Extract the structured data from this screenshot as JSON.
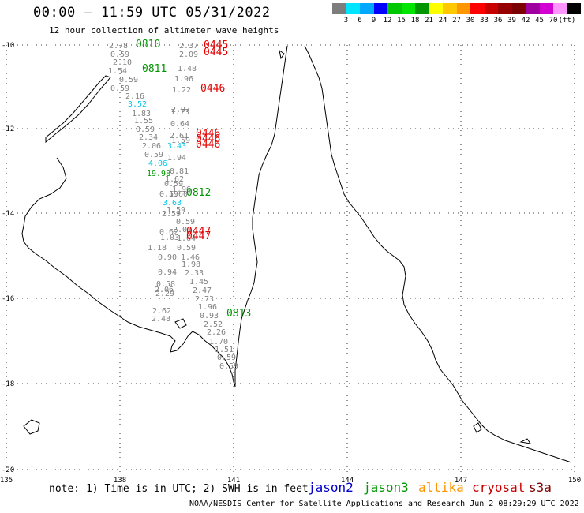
{
  "title": "00:00 – 11:59 UTC 05/31/2022",
  "subtitle": "12 hour collection of altimeter wave heights",
  "colorbar": {
    "colors": [
      "#7d7d7d",
      "#00e5ff",
      "#00a8ff",
      "#0000ff",
      "#00c800",
      "#00e600",
      "#009600",
      "#ffff00",
      "#ffc800",
      "#ff9600",
      "#ff0000",
      "#c80000",
      "#960000",
      "#7d0000",
      "#a000a0",
      "#d200d2",
      "#ff96ff",
      "#000000"
    ],
    "ticks": [
      "3",
      "6",
      "9",
      "12",
      "15",
      "18",
      "21",
      "24",
      "27",
      "30",
      "33",
      "36",
      "39",
      "42",
      "45",
      "70",
      "(ft)"
    ]
  },
  "axes": {
    "lat_labels": [
      "-10",
      "-12",
      "-14",
      "-16",
      "-18",
      "-20"
    ],
    "lon_labels": [
      "135",
      "138",
      "141",
      "144",
      "147",
      "150"
    ]
  },
  "swh_readings": [
    {
      "t": "2.78",
      "c": "#808080"
    },
    {
      "t": "2.37",
      "c": "#808080"
    },
    {
      "t": "0.59",
      "c": "#808080"
    },
    {
      "t": "2.09",
      "c": "#808080"
    },
    {
      "t": "2.10",
      "c": "#808080"
    },
    {
      "t": "1.54",
      "c": "#808080"
    },
    {
      "t": "1.48",
      "c": "#808080"
    },
    {
      "t": "0.59",
      "c": "#808080"
    },
    {
      "t": "1.96",
      "c": "#808080"
    },
    {
      "t": "0.59",
      "c": "#808080"
    },
    {
      "t": "1.22",
      "c": "#808080"
    },
    {
      "t": "2.16",
      "c": "#808080"
    },
    {
      "t": "3.52",
      "c": "#00c8e6"
    },
    {
      "t": "2.97",
      "c": "#808080"
    },
    {
      "t": "1.83",
      "c": "#808080"
    },
    {
      "t": "1.73",
      "c": "#808080"
    },
    {
      "t": "1.55",
      "c": "#808080"
    },
    {
      "t": "0.64",
      "c": "#808080"
    },
    {
      "t": "0.59",
      "c": "#808080"
    },
    {
      "t": "2.34",
      "c": "#808080"
    },
    {
      "t": "2.61",
      "c": "#808080"
    },
    {
      "t": "1.59",
      "c": "#808080"
    },
    {
      "t": "2.06",
      "c": "#808080"
    },
    {
      "t": "3.43",
      "c": "#00c8e6"
    },
    {
      "t": "0.59",
      "c": "#808080"
    },
    {
      "t": "1.94",
      "c": "#808080"
    },
    {
      "t": "4.06",
      "c": "#00c8e6"
    },
    {
      "t": "19.98",
      "c": "#009600"
    },
    {
      "t": "0.81",
      "c": "#808080"
    },
    {
      "t": "1.62",
      "c": "#808080"
    },
    {
      "t": "0.59",
      "c": "#808080"
    },
    {
      "t": "1.96",
      "c": "#808080"
    },
    {
      "t": "0.59",
      "c": "#808080"
    },
    {
      "t": "1.60",
      "c": "#808080"
    },
    {
      "t": "3.63",
      "c": "#00c8e6"
    },
    {
      "t": "1.59",
      "c": "#808080"
    },
    {
      "t": "2.59",
      "c": "#808080"
    },
    {
      "t": "0.59",
      "c": "#808080"
    },
    {
      "t": "2.03",
      "c": "#808080"
    },
    {
      "t": "0.62",
      "c": "#808080"
    },
    {
      "t": "1.03",
      "c": "#808080"
    },
    {
      "t": "1.64",
      "c": "#808080"
    },
    {
      "t": "1.18",
      "c": "#808080"
    },
    {
      "t": "0.59",
      "c": "#808080"
    },
    {
      "t": "0.90",
      "c": "#808080"
    },
    {
      "t": "1.46",
      "c": "#808080"
    },
    {
      "t": "1.98",
      "c": "#808080"
    },
    {
      "t": "0.94",
      "c": "#808080"
    },
    {
      "t": "2.33",
      "c": "#808080"
    },
    {
      "t": "1.45",
      "c": "#808080"
    },
    {
      "t": "0.58",
      "c": "#808080"
    },
    {
      "t": "2.06",
      "c": "#808080"
    },
    {
      "t": "2.47",
      "c": "#808080"
    },
    {
      "t": "2.29",
      "c": "#808080"
    },
    {
      "t": "2.73",
      "c": "#808080"
    },
    {
      "t": "1.96",
      "c": "#808080"
    },
    {
      "t": "2.62",
      "c": "#808080"
    },
    {
      "t": "0.93",
      "c": "#808080"
    },
    {
      "t": "2.48",
      "c": "#808080"
    },
    {
      "t": "2.52",
      "c": "#808080"
    },
    {
      "t": "2.26",
      "c": "#808080"
    },
    {
      "t": "1.70",
      "c": "#808080"
    },
    {
      "t": "1.51",
      "c": "#808080"
    },
    {
      "t": "0.59",
      "c": "#808080"
    },
    {
      "t": "0.59",
      "c": "#808080"
    }
  ],
  "time_labels": [
    {
      "t": "0810",
      "c": "#009600"
    },
    {
      "t": "0445",
      "c": "#e60000"
    },
    {
      "t": "0445",
      "c": "#e60000"
    },
    {
      "t": "0811",
      "c": "#009600"
    },
    {
      "t": "0446",
      "c": "#e60000"
    },
    {
      "t": "0446",
      "c": "#e60000"
    },
    {
      "t": "0446",
      "c": "#e60000"
    },
    {
      "t": "0446",
      "c": "#e60000"
    },
    {
      "t": "0812",
      "c": "#009600"
    },
    {
      "t": "0447",
      "c": "#e60000"
    },
    {
      "t": "0447",
      "c": "#e60000"
    },
    {
      "t": "0813",
      "c": "#009600"
    }
  ],
  "note": "note: 1) Time is in UTC; 2) SWH is in feet",
  "legend": [
    {
      "name": "jason2",
      "color": "#0000c8"
    },
    {
      "name": "jason3",
      "color": "#009600"
    },
    {
      "name": "altika",
      "color": "#ff9600"
    },
    {
      "name": "cryosat",
      "color": "#c80000"
    },
    {
      "name": "s3a",
      "color": "#800000"
    }
  ],
  "credit": "NOAA/NESDIS Center for Satellite Applications and Research  Jun  2 08:29:29 UTC 2022"
}
